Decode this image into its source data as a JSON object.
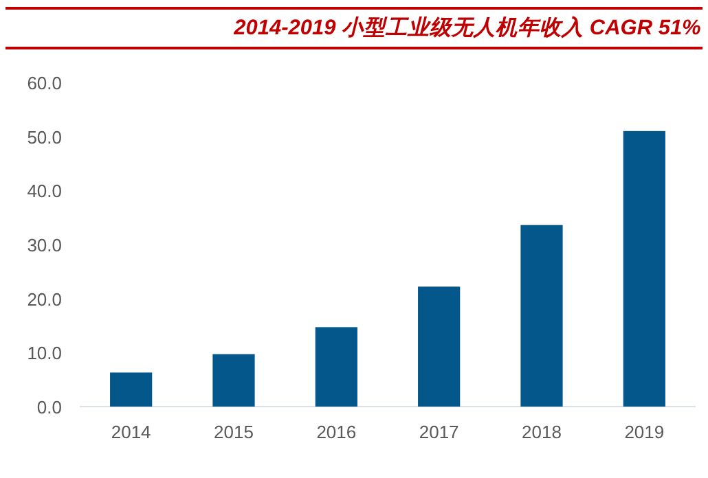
{
  "chart_data": {
    "type": "bar",
    "title": "2014-2019 小型工业级无人机年收入 CAGR 51%",
    "categories": [
      "2014",
      "2015",
      "2016",
      "2017",
      "2018",
      "2019"
    ],
    "values": [
      6.3,
      9.7,
      14.7,
      22.2,
      33.6,
      51.0
    ],
    "color": "#03578a",
    "ylim": [
      0,
      60
    ],
    "yticks": [
      {
        "value": 0,
        "label": "0.0"
      },
      {
        "value": 10,
        "label": "10.0"
      },
      {
        "value": 20,
        "label": "20.0"
      },
      {
        "value": 30,
        "label": "30.0"
      },
      {
        "value": 40,
        "label": "40.0"
      },
      {
        "value": 50,
        "label": "50.0"
      },
      {
        "value": 60,
        "label": "60.0"
      }
    ],
    "grid": false
  }
}
